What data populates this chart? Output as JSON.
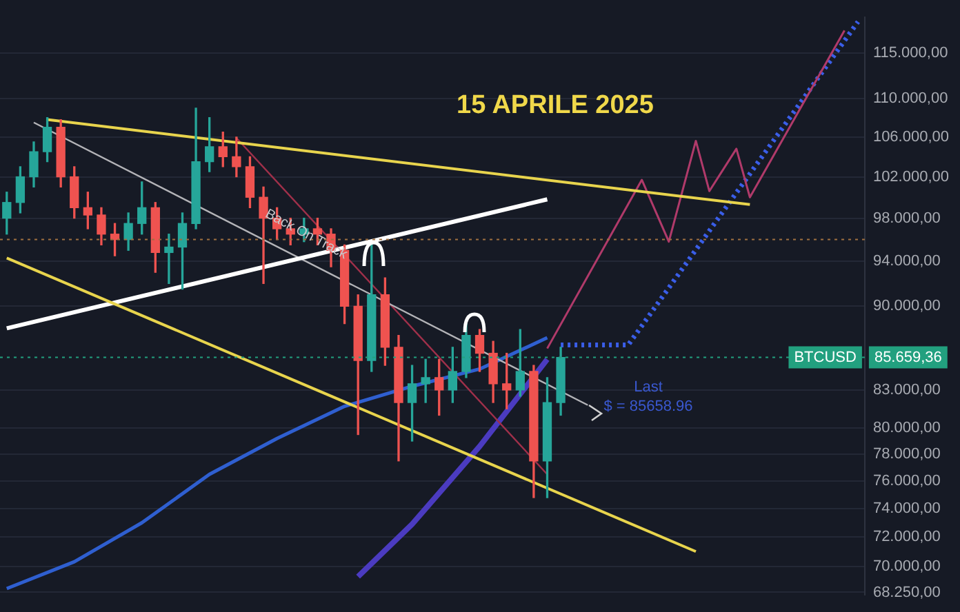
{
  "chart_data": {
    "type": "candlestick",
    "title": "15 APRILE 2025",
    "categories": [
      null,
      null,
      null,
      null,
      null,
      null,
      null,
      null,
      null,
      null,
      null,
      null,
      null,
      null,
      null,
      null,
      null,
      null,
      null,
      null,
      null,
      null,
      null,
      null,
      null,
      null,
      null,
      null,
      null,
      null,
      null,
      null,
      null,
      null,
      null,
      null,
      null,
      null,
      null,
      null,
      null,
      null,
      null,
      null,
      null,
      null,
      null,
      null,
      null,
      null,
      null,
      null,
      null,
      null,
      null,
      null,
      null,
      null,
      null,
      null,
      null,
      null,
      null,
      null
    ],
    "ohlc": [
      [
        98000,
        100500,
        96500,
        99500
      ],
      [
        99500,
        103000,
        98500,
        102000
      ],
      [
        102000,
        105500,
        101000,
        104500
      ],
      [
        104500,
        108000,
        103500,
        107000
      ],
      [
        107000,
        107800,
        101000,
        102000
      ],
      [
        102000,
        103000,
        98000,
        99000
      ],
      [
        99000,
        100500,
        97000,
        98300
      ],
      [
        98300,
        99000,
        95500,
        96500
      ],
      [
        96500,
        97500,
        94500,
        96000
      ],
      [
        96000,
        98500,
        95000,
        97500
      ],
      [
        97500,
        101500,
        96500,
        99000
      ],
      [
        99000,
        99500,
        93000,
        94800
      ],
      [
        94800,
        96500,
        92000,
        95300
      ],
      [
        95300,
        98500,
        91500,
        97500
      ],
      [
        97500,
        109000,
        97000,
        103500
      ],
      [
        103500,
        108000,
        102500,
        105000
      ],
      [
        105000,
        106500,
        103000,
        104000
      ],
      [
        104000,
        106000,
        102000,
        103000
      ],
      [
        103000,
        104000,
        99000,
        100000
      ],
      [
        100000,
        101000,
        92000,
        98000
      ],
      [
        98000,
        99000,
        96000,
        97000
      ],
      [
        97000,
        98000,
        95500,
        96500
      ],
      [
        96500,
        98000,
        95800,
        97000
      ],
      [
        97000,
        98000,
        95500,
        96500
      ],
      [
        96500,
        97000,
        93500,
        95000
      ],
      [
        95000,
        95500,
        88500,
        90000
      ],
      [
        90000,
        91000,
        79500,
        85400
      ],
      [
        85400,
        95500,
        84500,
        91000
      ],
      [
        91000,
        92500,
        85000,
        86500
      ],
      [
        86500,
        87500,
        77500,
        82000
      ],
      [
        82000,
        85000,
        79000,
        83500
      ],
      [
        83500,
        85500,
        82000,
        84000
      ],
      [
        84000,
        85500,
        81000,
        83000
      ],
      [
        83000,
        86500,
        82000,
        84500
      ],
      [
        84500,
        88500,
        84000,
        87500
      ],
      [
        87500,
        88000,
        84500,
        86000
      ],
      [
        86000,
        87000,
        82000,
        83500
      ],
      [
        83500,
        86000,
        81500,
        83000
      ],
      [
        83000,
        88000,
        82500,
        84500
      ],
      [
        84500,
        85000,
        74800,
        77500
      ],
      [
        77500,
        84000,
        74800,
        82000
      ],
      [
        82000,
        86500,
        81000,
        85659
      ],
      null,
      null,
      null,
      null,
      null,
      null,
      null,
      null,
      null,
      null,
      null,
      null,
      null,
      null,
      null,
      null,
      null,
      null,
      null,
      null,
      null,
      null
    ],
    "series": [
      {
        "type": "line",
        "color": "#e8d44d",
        "values": [
          null,
          null,
          null,
          107800,
          null,
          null,
          null,
          null,
          null,
          null,
          null,
          null,
          null,
          null,
          null,
          null,
          null,
          null,
          null,
          null,
          null,
          null,
          null,
          null,
          null,
          null,
          null,
          null,
          null,
          null,
          null,
          null,
          null,
          null,
          null,
          null,
          null,
          null,
          null,
          null,
          null,
          null,
          null,
          null,
          null,
          null,
          null,
          null,
          null,
          null,
          null,
          null,
          null,
          null,
          null,
          99300,
          null,
          null,
          null,
          null,
          null,
          null,
          null,
          null
        ]
      },
      {
        "type": "line",
        "color": "#e8d44d",
        "values": [
          94300,
          null,
          null,
          null,
          null,
          null,
          null,
          null,
          null,
          null,
          null,
          null,
          null,
          null,
          null,
          null,
          null,
          null,
          null,
          null,
          null,
          null,
          null,
          null,
          null,
          null,
          null,
          null,
          null,
          null,
          null,
          null,
          null,
          null,
          null,
          null,
          null,
          null,
          null,
          null,
          null,
          null,
          null,
          null,
          null,
          null,
          null,
          null,
          null,
          null,
          null,
          71000,
          null,
          null,
          null,
          null,
          null,
          null,
          null,
          null,
          null,
          null,
          null,
          null
        ]
      },
      {
        "type": "line",
        "color": "#ffffff",
        "values": [
          88100,
          null,
          null,
          null,
          null,
          null,
          null,
          null,
          null,
          null,
          null,
          null,
          null,
          null,
          null,
          null,
          null,
          null,
          null,
          null,
          null,
          null,
          null,
          null,
          null,
          null,
          null,
          null,
          null,
          null,
          null,
          null,
          null,
          null,
          null,
          null,
          null,
          null,
          null,
          null,
          99800,
          null,
          null,
          null,
          null,
          null,
          null,
          null,
          null,
          null,
          null,
          null,
          null,
          null,
          null,
          null,
          null,
          null,
          null,
          null,
          null,
          null,
          null,
          null
        ]
      },
      {
        "type": "line",
        "color": "#b4b4b8",
        "values": [
          null,
          null,
          107500,
          null,
          null,
          null,
          null,
          null,
          null,
          null,
          null,
          null,
          null,
          null,
          null,
          null,
          null,
          null,
          null,
          null,
          null,
          null,
          null,
          null,
          null,
          null,
          null,
          null,
          null,
          null,
          null,
          null,
          null,
          null,
          null,
          null,
          null,
          null,
          null,
          null,
          null,
          null,
          null,
          81800,
          null,
          null,
          null,
          null,
          null,
          null,
          null,
          null,
          null,
          null,
          null,
          null,
          null,
          null,
          null,
          null,
          null,
          null,
          null,
          null
        ]
      },
      {
        "type": "line",
        "color": "#a0304a",
        "values": [
          null,
          null,
          null,
          null,
          null,
          null,
          null,
          null,
          null,
          null,
          null,
          null,
          null,
          null,
          null,
          null,
          null,
          105900,
          null,
          null,
          null,
          null,
          null,
          null,
          null,
          null,
          null,
          null,
          null,
          null,
          null,
          null,
          null,
          null,
          null,
          null,
          null,
          null,
          null,
          null,
          76500,
          null,
          null,
          null,
          null,
          null,
          null,
          null,
          null,
          null,
          null,
          null,
          null,
          null,
          null,
          null,
          null,
          null,
          null,
          null,
          null,
          null,
          null,
          null
        ]
      },
      {
        "type": "line",
        "color": "#2f5fd0",
        "values": [
          68500,
          null,
          null,
          null,
          null,
          70300,
          null,
          null,
          null,
          null,
          73000,
          null,
          null,
          null,
          null,
          76500,
          null,
          null,
          null,
          null,
          79200,
          null,
          null,
          null,
          null,
          81700,
          null,
          null,
          null,
          null,
          83300,
          null,
          null,
          null,
          null,
          84700,
          null,
          null,
          null,
          null,
          87300,
          null,
          null,
          null,
          null,
          null,
          null,
          null,
          null,
          null,
          null,
          null,
          null,
          null,
          null,
          null,
          null,
          null,
          null,
          null,
          null,
          null,
          null,
          null
        ]
      },
      {
        "type": "line",
        "color": "#4b3bc0",
        "values": [
          null,
          null,
          null,
          null,
          null,
          null,
          null,
          null,
          null,
          null,
          null,
          null,
          null,
          null,
          null,
          null,
          null,
          null,
          null,
          null,
          null,
          null,
          null,
          null,
          null,
          null,
          69300,
          null,
          null,
          null,
          72900,
          null,
          null,
          null,
          null,
          78600,
          null,
          null,
          null,
          null,
          85500,
          null,
          null,
          null,
          null,
          null,
          null,
          null,
          null,
          null,
          null,
          null,
          null,
          null,
          null,
          null,
          null,
          null,
          null,
          null,
          null,
          null,
          null,
          null
        ]
      },
      {
        "type": "line",
        "color": "#b03a6a",
        "values": [
          null,
          null,
          null,
          null,
          null,
          null,
          null,
          null,
          null,
          null,
          null,
          null,
          null,
          null,
          null,
          null,
          null,
          null,
          null,
          null,
          null,
          null,
          null,
          null,
          null,
          null,
          null,
          null,
          null,
          null,
          null,
          null,
          null,
          null,
          null,
          null,
          null,
          null,
          null,
          null,
          86400,
          null,
          null,
          null,
          null,
          null,
          null,
          101700,
          null,
          95800,
          null,
          105600,
          100600,
          null,
          104800,
          100000,
          null,
          null,
          null,
          null,
          null,
          null,
          117500,
          null
        ]
      },
      {
        "type": "line",
        "color": "#3a5ee8",
        "line_style": "dotted",
        "values": [
          null,
          null,
          null,
          null,
          null,
          null,
          null,
          null,
          null,
          null,
          null,
          null,
          null,
          null,
          null,
          null,
          null,
          null,
          null,
          null,
          null,
          null,
          null,
          null,
          null,
          null,
          null,
          null,
          null,
          null,
          null,
          null,
          null,
          null,
          null,
          null,
          null,
          null,
          null,
          null,
          null,
          86700,
          null,
          null,
          null,
          null,
          86700,
          null,
          null,
          null,
          null,
          null,
          null,
          null,
          null,
          null,
          null,
          null,
          null,
          null,
          null,
          null,
          null,
          118500
        ]
      }
    ],
    "log": "y",
    "ylim": [
      68100,
      119000
    ],
    "yticks": [
      {
        "value": 68250,
        "label": "68.250,00"
      },
      {
        "value": 70000,
        "label": "70.000,00"
      },
      {
        "value": 72000,
        "label": "72.000,00"
      },
      {
        "value": 74000,
        "label": "74.000,00"
      },
      {
        "value": 76000,
        "label": "76.000,00"
      },
      {
        "value": 78000,
        "label": "78.000,00"
      },
      {
        "value": 80000,
        "label": "80.000,00"
      },
      {
        "value": 83000,
        "label": "83.000,00"
      },
      {
        "value": 90000,
        "label": "90.000,00"
      },
      {
        "value": 94000,
        "label": "94.000,00"
      },
      {
        "value": 98000,
        "label": "98.000,00"
      },
      {
        "value": 102000,
        "label": "102.000,00"
      },
      {
        "value": 106000,
        "label": "106.000,00"
      },
      {
        "value": 110000,
        "label": "110.000,00"
      },
      {
        "value": 115000,
        "label": "115.000,00"
      }
    ],
    "ref_lines": [
      {
        "axis": "y",
        "value": 96000,
        "color": "#a07040",
        "line_style": "dotted"
      },
      {
        "axis": "y",
        "value": 85659.36,
        "label": "85.659,36",
        "color": "#22a07f",
        "line_style": "dotted"
      }
    ],
    "annotations": [
      "Back On Track",
      "Last\n$ = 85658.96",
      {
        "text": "BTCUSD",
        "y": 85659.36
      }
    ],
    "grid": "y",
    "legend": false,
    "tick_labels": "y"
  }
}
